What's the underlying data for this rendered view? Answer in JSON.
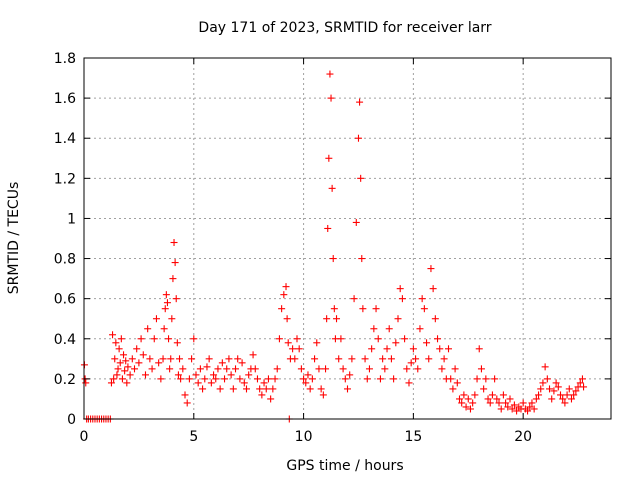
{
  "chart_data": {
    "type": "scatter",
    "title": "Day 171 of 2023, SRMTID for receiver larr",
    "xlabel": "GPS time / hours",
    "ylabel": "SRMTID / TECUs",
    "xlim": [
      0,
      24
    ],
    "ylim": [
      0,
      1.8
    ],
    "xticks": [
      0,
      5,
      10,
      15,
      20
    ],
    "yticks": [
      0,
      0.2,
      0.4,
      0.6,
      0.8,
      1,
      1.2,
      1.4,
      1.6,
      1.8
    ],
    "xtick_labels": [
      "0",
      "5",
      "10",
      "15",
      "20"
    ],
    "ytick_labels": [
      "0",
      "0.2",
      "0.4",
      "0.6",
      "0.8",
      "1",
      "1.2",
      "1.4",
      "1.6",
      "1.8"
    ],
    "grid": true,
    "marker": "+",
    "color": "#ff0000",
    "series": [
      {
        "name": "SRMTID",
        "points": [
          [
            0.02,
            0.27
          ],
          [
            0.05,
            0.2
          ],
          [
            0.08,
            0.18
          ],
          [
            0.12,
            0.0
          ],
          [
            0.2,
            0.0
          ],
          [
            0.3,
            0.0
          ],
          [
            0.4,
            0.0
          ],
          [
            0.5,
            0.0
          ],
          [
            0.6,
            0.0
          ],
          [
            0.7,
            0.0
          ],
          [
            0.8,
            0.0
          ],
          [
            0.9,
            0.0
          ],
          [
            1.0,
            0.0
          ],
          [
            1.1,
            0.0
          ],
          [
            1.2,
            0.0
          ],
          [
            1.25,
            0.18
          ],
          [
            1.3,
            0.42
          ],
          [
            1.35,
            0.2
          ],
          [
            1.4,
            0.3
          ],
          [
            1.45,
            0.38
          ],
          [
            1.5,
            0.22
          ],
          [
            1.55,
            0.25
          ],
          [
            1.6,
            0.35
          ],
          [
            1.65,
            0.28
          ],
          [
            1.7,
            0.4
          ],
          [
            1.75,
            0.2
          ],
          [
            1.8,
            0.32
          ],
          [
            1.85,
            0.24
          ],
          [
            1.9,
            0.29
          ],
          [
            1.95,
            0.18
          ],
          [
            2.0,
            0.26
          ],
          [
            2.1,
            0.22
          ],
          [
            2.2,
            0.3
          ],
          [
            2.3,
            0.25
          ],
          [
            2.4,
            0.35
          ],
          [
            2.5,
            0.28
          ],
          [
            2.6,
            0.4
          ],
          [
            2.7,
            0.32
          ],
          [
            2.8,
            0.22
          ],
          [
            2.9,
            0.45
          ],
          [
            3.0,
            0.3
          ],
          [
            3.1,
            0.25
          ],
          [
            3.2,
            0.4
          ],
          [
            3.3,
            0.5
          ],
          [
            3.4,
            0.28
          ],
          [
            3.5,
            0.2
          ],
          [
            3.6,
            0.3
          ],
          [
            3.65,
            0.45
          ],
          [
            3.7,
            0.55
          ],
          [
            3.75,
            0.62
          ],
          [
            3.8,
            0.58
          ],
          [
            3.85,
            0.4
          ],
          [
            3.9,
            0.25
          ],
          [
            3.95,
            0.3
          ],
          [
            4.0,
            0.5
          ],
          [
            4.05,
            0.7
          ],
          [
            4.1,
            0.88
          ],
          [
            4.15,
            0.78
          ],
          [
            4.2,
            0.6
          ],
          [
            4.25,
            0.38
          ],
          [
            4.3,
            0.22
          ],
          [
            4.35,
            0.3
          ],
          [
            4.4,
            0.2
          ],
          [
            4.5,
            0.25
          ],
          [
            4.6,
            0.12
          ],
          [
            4.7,
            0.08
          ],
          [
            4.8,
            0.2
          ],
          [
            4.9,
            0.3
          ],
          [
            5.0,
            0.4
          ],
          [
            5.1,
            0.22
          ],
          [
            5.2,
            0.18
          ],
          [
            5.3,
            0.25
          ],
          [
            5.4,
            0.15
          ],
          [
            5.5,
            0.2
          ],
          [
            5.6,
            0.26
          ],
          [
            5.7,
            0.3
          ],
          [
            5.8,
            0.18
          ],
          [
            5.9,
            0.22
          ],
          [
            6.0,
            0.2
          ],
          [
            6.1,
            0.25
          ],
          [
            6.2,
            0.15
          ],
          [
            6.3,
            0.28
          ],
          [
            6.4,
            0.2
          ],
          [
            6.5,
            0.25
          ],
          [
            6.6,
            0.3
          ],
          [
            6.7,
            0.22
          ],
          [
            6.8,
            0.15
          ],
          [
            6.9,
            0.25
          ],
          [
            7.0,
            0.3
          ],
          [
            7.1,
            0.2
          ],
          [
            7.2,
            0.28
          ],
          [
            7.3,
            0.18
          ],
          [
            7.4,
            0.15
          ],
          [
            7.5,
            0.22
          ],
          [
            7.6,
            0.25
          ],
          [
            7.7,
            0.32
          ],
          [
            7.8,
            0.25
          ],
          [
            7.9,
            0.2
          ],
          [
            8.0,
            0.15
          ],
          [
            8.1,
            0.12
          ],
          [
            8.2,
            0.18
          ],
          [
            8.3,
            0.15
          ],
          [
            8.4,
            0.2
          ],
          [
            8.5,
            0.1
          ],
          [
            8.6,
            0.15
          ],
          [
            8.7,
            0.2
          ],
          [
            8.8,
            0.25
          ],
          [
            8.9,
            0.4
          ],
          [
            9.0,
            0.55
          ],
          [
            9.1,
            0.62
          ],
          [
            9.2,
            0.66
          ],
          [
            9.25,
            0.5
          ],
          [
            9.3,
            0.38
          ],
          [
            9.35,
            0.0
          ],
          [
            9.4,
            0.3
          ],
          [
            9.5,
            0.35
          ],
          [
            9.6,
            0.3
          ],
          [
            9.7,
            0.4
          ],
          [
            9.8,
            0.35
          ],
          [
            9.9,
            0.25
          ],
          [
            10.0,
            0.2
          ],
          [
            10.1,
            0.18
          ],
          [
            10.2,
            0.22
          ],
          [
            10.3,
            0.15
          ],
          [
            10.4,
            0.2
          ],
          [
            10.5,
            0.3
          ],
          [
            10.6,
            0.38
          ],
          [
            10.7,
            0.25
          ],
          [
            10.8,
            0.15
          ],
          [
            10.9,
            0.12
          ],
          [
            11.0,
            0.25
          ],
          [
            11.05,
            0.5
          ],
          [
            11.1,
            0.95
          ],
          [
            11.15,
            1.3
          ],
          [
            11.2,
            1.72
          ],
          [
            11.25,
            1.6
          ],
          [
            11.3,
            1.15
          ],
          [
            11.35,
            0.8
          ],
          [
            11.4,
            0.55
          ],
          [
            11.45,
            0.4
          ],
          [
            11.5,
            0.5
          ],
          [
            11.6,
            0.3
          ],
          [
            11.7,
            0.4
          ],
          [
            11.8,
            0.25
          ],
          [
            11.9,
            0.2
          ],
          [
            12.0,
            0.15
          ],
          [
            12.1,
            0.22
          ],
          [
            12.2,
            0.3
          ],
          [
            12.3,
            0.6
          ],
          [
            12.4,
            0.98
          ],
          [
            12.5,
            1.4
          ],
          [
            12.55,
            1.58
          ],
          [
            12.6,
            1.2
          ],
          [
            12.65,
            0.8
          ],
          [
            12.7,
            0.55
          ],
          [
            12.8,
            0.3
          ],
          [
            12.9,
            0.2
          ],
          [
            13.0,
            0.25
          ],
          [
            13.1,
            0.35
          ],
          [
            13.2,
            0.45
          ],
          [
            13.3,
            0.55
          ],
          [
            13.4,
            0.4
          ],
          [
            13.5,
            0.2
          ],
          [
            13.6,
            0.3
          ],
          [
            13.7,
            0.25
          ],
          [
            13.8,
            0.35
          ],
          [
            13.9,
            0.45
          ],
          [
            14.0,
            0.3
          ],
          [
            14.1,
            0.2
          ],
          [
            14.2,
            0.38
          ],
          [
            14.3,
            0.5
          ],
          [
            14.4,
            0.65
          ],
          [
            14.5,
            0.6
          ],
          [
            14.6,
            0.4
          ],
          [
            14.7,
            0.25
          ],
          [
            14.8,
            0.18
          ],
          [
            14.9,
            0.28
          ],
          [
            15.0,
            0.35
          ],
          [
            15.1,
            0.3
          ],
          [
            15.2,
            0.25
          ],
          [
            15.3,
            0.45
          ],
          [
            15.4,
            0.6
          ],
          [
            15.5,
            0.55
          ],
          [
            15.6,
            0.38
          ],
          [
            15.7,
            0.3
          ],
          [
            15.8,
            0.75
          ],
          [
            15.9,
            0.65
          ],
          [
            16.0,
            0.5
          ],
          [
            16.1,
            0.4
          ],
          [
            16.2,
            0.35
          ],
          [
            16.3,
            0.25
          ],
          [
            16.4,
            0.3
          ],
          [
            16.5,
            0.2
          ],
          [
            16.6,
            0.35
          ],
          [
            16.7,
            0.2
          ],
          [
            16.8,
            0.15
          ],
          [
            16.9,
            0.25
          ],
          [
            17.0,
            0.18
          ],
          [
            17.1,
            0.1
          ],
          [
            17.2,
            0.08
          ],
          [
            17.3,
            0.12
          ],
          [
            17.4,
            0.06
          ],
          [
            17.5,
            0.1
          ],
          [
            17.6,
            0.05
          ],
          [
            17.7,
            0.08
          ],
          [
            17.8,
            0.12
          ],
          [
            17.9,
            0.2
          ],
          [
            18.0,
            0.35
          ],
          [
            18.1,
            0.25
          ],
          [
            18.2,
            0.15
          ],
          [
            18.3,
            0.2
          ],
          [
            18.4,
            0.1
          ],
          [
            18.5,
            0.08
          ],
          [
            18.6,
            0.12
          ],
          [
            18.7,
            0.2
          ],
          [
            18.8,
            0.1
          ],
          [
            18.9,
            0.08
          ],
          [
            19.0,
            0.05
          ],
          [
            19.1,
            0.12
          ],
          [
            19.2,
            0.08
          ],
          [
            19.3,
            0.06
          ],
          [
            19.4,
            0.1
          ],
          [
            19.5,
            0.05
          ],
          [
            19.6,
            0.07
          ],
          [
            19.7,
            0.04
          ],
          [
            19.8,
            0.06
          ],
          [
            19.9,
            0.05
          ],
          [
            20.0,
            0.08
          ],
          [
            20.1,
            0.05
          ],
          [
            20.2,
            0.04
          ],
          [
            20.3,
            0.06
          ],
          [
            20.4,
            0.08
          ],
          [
            20.5,
            0.05
          ],
          [
            20.6,
            0.1
          ],
          [
            20.7,
            0.12
          ],
          [
            20.8,
            0.15
          ],
          [
            20.9,
            0.18
          ],
          [
            21.0,
            0.26
          ],
          [
            21.1,
            0.2
          ],
          [
            21.2,
            0.15
          ],
          [
            21.3,
            0.1
          ],
          [
            21.4,
            0.14
          ],
          [
            21.5,
            0.18
          ],
          [
            21.6,
            0.16
          ],
          [
            21.7,
            0.12
          ],
          [
            21.8,
            0.1
          ],
          [
            21.9,
            0.08
          ],
          [
            22.0,
            0.12
          ],
          [
            22.1,
            0.15
          ],
          [
            22.2,
            0.1
          ],
          [
            22.3,
            0.12
          ],
          [
            22.4,
            0.14
          ],
          [
            22.5,
            0.16
          ],
          [
            22.6,
            0.18
          ],
          [
            22.7,
            0.2
          ],
          [
            22.75,
            0.16
          ]
        ]
      }
    ]
  }
}
